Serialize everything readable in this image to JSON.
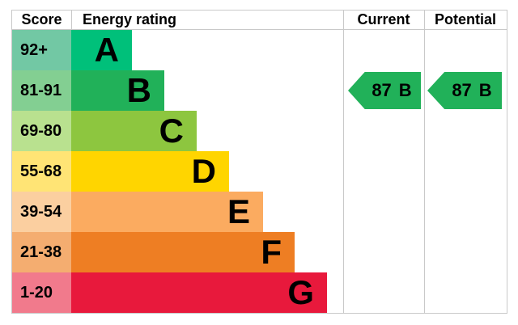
{
  "headers": {
    "score": "Score",
    "energy_rating": "Energy rating",
    "current": "Current",
    "potential": "Potential"
  },
  "chart_data": {
    "type": "bar",
    "title": "Energy rating",
    "orientation": "horizontal",
    "legend_position": "none",
    "grid": false,
    "border_color": "#c9c9c9",
    "bands": [
      {
        "grade": "A",
        "score_range": "92+",
        "bar_color": "#00c07a",
        "score_color": "#72c8a4"
      },
      {
        "grade": "B",
        "score_range": "81-91",
        "bar_color": "#21b159",
        "score_color": "#83cf92"
      },
      {
        "grade": "C",
        "score_range": "69-80",
        "bar_color": "#8dc63f",
        "score_color": "#b9e18f"
      },
      {
        "grade": "D",
        "score_range": "55-68",
        "bar_color": "#ffd500",
        "score_color": "#ffe475"
      },
      {
        "grade": "E",
        "score_range": "39-54",
        "bar_color": "#fbab60",
        "score_color": "#fbcfa0"
      },
      {
        "grade": "F",
        "score_range": "21-38",
        "bar_color": "#ee7e23",
        "score_color": "#f4ad70"
      },
      {
        "grade": "G",
        "score_range": "1-20",
        "bar_color": "#e8193c",
        "score_color": "#f17a8c"
      }
    ],
    "current": {
      "value": "87",
      "grade": "B",
      "color": "#21b159"
    },
    "potential": {
      "value": "87",
      "grade": "B",
      "color": "#21b159"
    }
  }
}
